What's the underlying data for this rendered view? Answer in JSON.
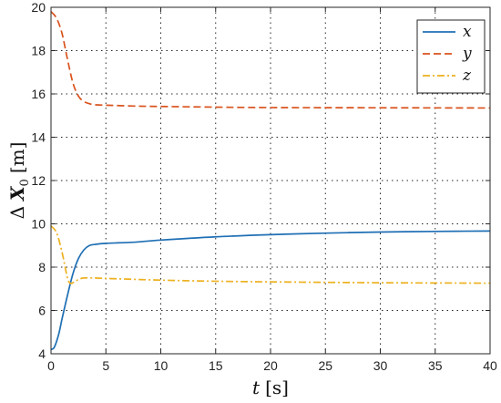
{
  "chart_data": {
    "type": "line",
    "xlabel": "t [s]",
    "ylabel": "Δ X₀ [m]",
    "xlabel_parts": {
      "var": "t",
      "unit": "[s]"
    },
    "ylabel_parts": {
      "delta": "Δ",
      "var": "X",
      "sub": "0",
      "unit": "[m]"
    },
    "xlim": [
      0,
      40
    ],
    "ylim": [
      4,
      20
    ],
    "xticks": [
      0,
      5,
      10,
      15,
      20,
      25,
      30,
      35,
      40
    ],
    "yticks": [
      4,
      6,
      8,
      10,
      12,
      14,
      16,
      18,
      20
    ],
    "grid": true,
    "legend_position": "top-right",
    "series": [
      {
        "name": "x",
        "color": "#1f6fb4",
        "style": "solid",
        "points": [
          [
            0,
            4.2
          ],
          [
            0.3,
            4.3
          ],
          [
            0.7,
            4.9
          ],
          [
            1.0,
            5.6
          ],
          [
            1.5,
            6.7
          ],
          [
            2.0,
            7.7
          ],
          [
            2.5,
            8.4
          ],
          [
            3.0,
            8.8
          ],
          [
            3.5,
            9.0
          ],
          [
            4.0,
            9.05
          ],
          [
            5.0,
            9.1
          ],
          [
            7.5,
            9.15
          ],
          [
            10,
            9.25
          ],
          [
            15,
            9.4
          ],
          [
            20,
            9.5
          ],
          [
            25,
            9.57
          ],
          [
            30,
            9.62
          ],
          [
            35,
            9.65
          ],
          [
            40,
            9.67
          ]
        ]
      },
      {
        "name": "y",
        "color": "#d9531e",
        "style": "dashed",
        "points": [
          [
            0,
            19.8
          ],
          [
            0.5,
            19.5
          ],
          [
            1.0,
            18.8
          ],
          [
            1.5,
            17.6
          ],
          [
            2.0,
            16.5
          ],
          [
            2.5,
            15.9
          ],
          [
            3.0,
            15.65
          ],
          [
            3.5,
            15.55
          ],
          [
            4.0,
            15.5
          ],
          [
            5.0,
            15.48
          ],
          [
            7.5,
            15.44
          ],
          [
            10,
            15.42
          ],
          [
            15,
            15.39
          ],
          [
            20,
            15.37
          ],
          [
            30,
            15.36
          ],
          [
            40,
            15.35
          ]
        ]
      },
      {
        "name": "z",
        "color": "#edb120",
        "style": "dashdot",
        "points": [
          [
            0,
            9.9
          ],
          [
            0.5,
            9.6
          ],
          [
            1.0,
            8.7
          ],
          [
            1.5,
            7.5
          ],
          [
            1.8,
            7.25
          ],
          [
            2.2,
            7.35
          ],
          [
            2.6,
            7.45
          ],
          [
            3.0,
            7.5
          ],
          [
            4.0,
            7.5
          ],
          [
            5.0,
            7.48
          ],
          [
            10,
            7.4
          ],
          [
            15,
            7.35
          ],
          [
            20,
            7.32
          ],
          [
            30,
            7.28
          ],
          [
            40,
            7.26
          ]
        ]
      }
    ]
  }
}
